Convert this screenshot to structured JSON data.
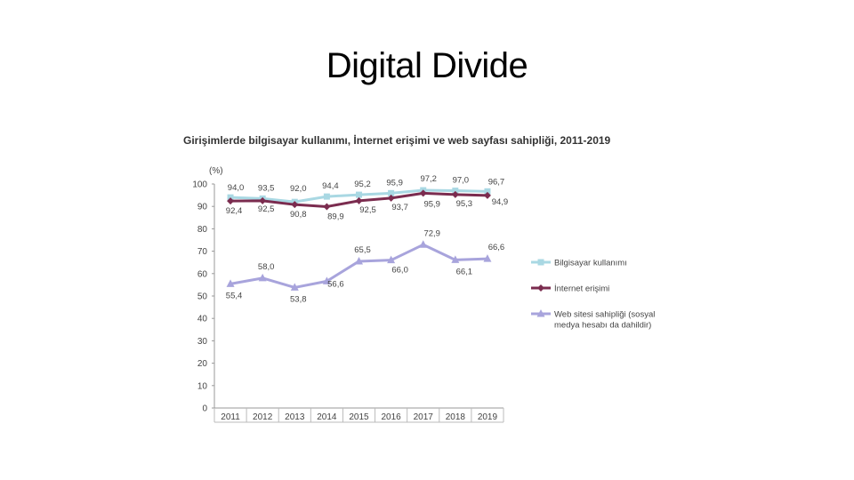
{
  "slide": {
    "title": "Digital Divide"
  },
  "chart_data": {
    "type": "line",
    "title": "Girişimlerde bilgisayar kullanımı, İnternet erişimi ve web sayfası sahipliği, 2011-2019",
    "ylabel": "(%)",
    "xlabel": "",
    "ylim": [
      0,
      100
    ],
    "yticks": [
      "0",
      "10",
      "20",
      "30",
      "40",
      "50",
      "60",
      "70",
      "80",
      "90",
      "100"
    ],
    "categories": [
      "2011",
      "2012",
      "2013",
      "2014",
      "2015",
      "2016",
      "2017",
      "2018",
      "2019"
    ],
    "grid": false,
    "legend_position": "right",
    "series": [
      {
        "name": "Bilgisayar kullanımı",
        "color": "#a9d8e3",
        "marker": "square",
        "values": [
          94.0,
          93.5,
          92.0,
          94.4,
          95.2,
          95.9,
          97.2,
          97.0,
          96.7
        ],
        "labels": [
          "94,0",
          "93,5",
          "92,0",
          "94,4",
          "95,2",
          "95,9",
          "97,2",
          "97,0",
          "96,7"
        ]
      },
      {
        "name": "İnternet erişimi",
        "color": "#7b2c4f",
        "marker": "diamond",
        "values": [
          92.4,
          92.5,
          90.8,
          89.9,
          92.5,
          93.7,
          95.9,
          95.3,
          94.9
        ],
        "labels": [
          "92,4",
          "92,5",
          "90,8",
          "89,9",
          "92,5",
          "93,7",
          "95,9",
          "95,3",
          "94,9"
        ]
      },
      {
        "name": "Web sitesi sahipliği (sosyal medya hesabı da dahildir)",
        "legend_lines": [
          "Web sitesi sahipliği (sosyal",
          "medya hesabı da dahildir)"
        ],
        "color": "#a8a4dc",
        "marker": "triangle",
        "values": [
          55.4,
          58.0,
          53.8,
          56.6,
          65.5,
          66.0,
          72.9,
          66.1,
          66.6
        ],
        "labels": [
          "55,4",
          "58,0",
          "53,8",
          "56,6",
          "65,5",
          "66,0",
          "72,9",
          "66,1",
          "66,6"
        ]
      }
    ]
  }
}
